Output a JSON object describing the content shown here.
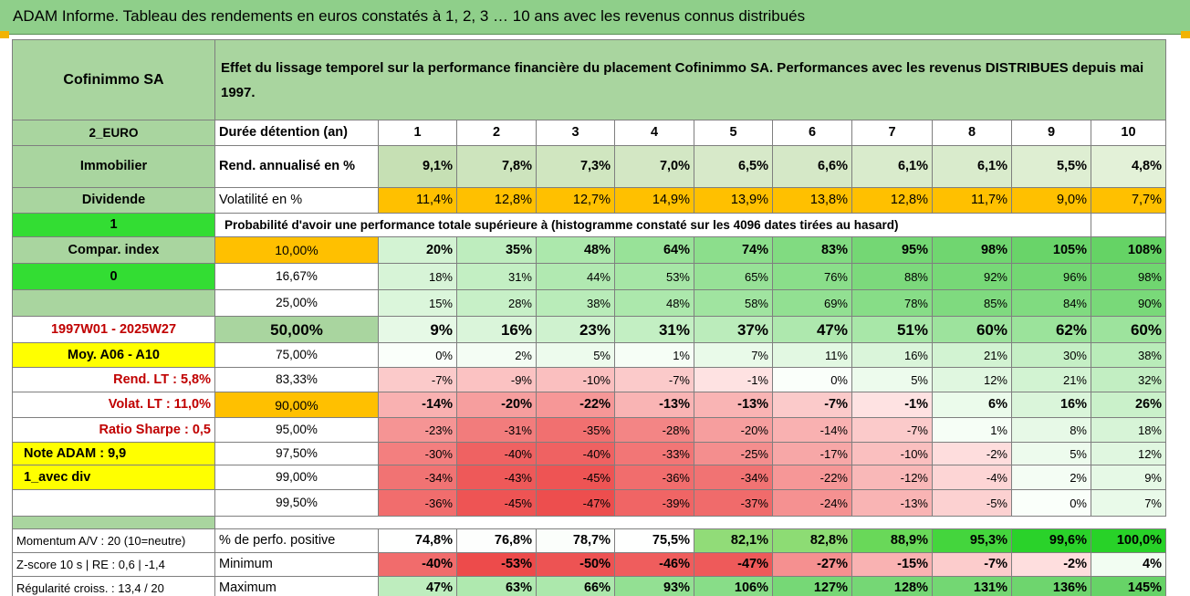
{
  "title": "ADAM Informe. Tableau des rendements en euros constatés à 1, 2, 3 … 10 ans avec les revenus connus distribués",
  "header": {
    "company": "Cofinimmo SA",
    "description": "Effet du lissage temporel sur la performance financière du placement Cofinimmo SA. Performances avec les revenus DISTRIBUES depuis mai 1997."
  },
  "years": [
    "1",
    "2",
    "3",
    "4",
    "5",
    "6",
    "7",
    "8",
    "9",
    "10"
  ],
  "top_rows": {
    "duration_label": "Durée détention (an)",
    "return_label": "Rend. annualisé en %",
    "returns": [
      "9,1%",
      "7,8%",
      "7,3%",
      "7,0%",
      "6,5%",
      "6,6%",
      "6,1%",
      "6,1%",
      "5,5%",
      "4,8%"
    ],
    "volatility_label": "Volatilité en %",
    "volatility": [
      "11,4%",
      "12,8%",
      "12,7%",
      "14,9%",
      "13,9%",
      "13,8%",
      "12,8%",
      "11,7%",
      "9,0%",
      "7,7%"
    ],
    "probability_label": "Probabilité d'avoir une performance totale supérieure à (histogramme constaté sur les 4096 dates tirées au hasard)"
  },
  "left_panel": [
    "2_EURO",
    "Immobilier",
    "Dividende",
    "1",
    "Compar. index",
    "0",
    "",
    "1997W01 - 2025W27",
    "Moy. A06 - A10",
    "Rend. LT :   5,8%",
    "Volat. LT :   11,0%",
    "Ratio Sharpe :   0,5",
    "Note ADAM : 9,9",
    "1_avec div",
    ""
  ],
  "histogram": [
    {
      "pct": "10,00%",
      "values": [
        "20%",
        "35%",
        "48%",
        "64%",
        "74%",
        "83%",
        "95%",
        "98%",
        "105%",
        "108%"
      ]
    },
    {
      "pct": "16,67%",
      "values": [
        "18%",
        "31%",
        "44%",
        "53%",
        "65%",
        "76%",
        "88%",
        "92%",
        "96%",
        "98%"
      ]
    },
    {
      "pct": "25,00%",
      "values": [
        "15%",
        "28%",
        "38%",
        "48%",
        "58%",
        "69%",
        "78%",
        "85%",
        "84%",
        "90%"
      ]
    },
    {
      "pct": "50,00%",
      "values": [
        "9%",
        "16%",
        "23%",
        "31%",
        "37%",
        "47%",
        "51%",
        "60%",
        "62%",
        "60%"
      ]
    },
    {
      "pct": "75,00%",
      "values": [
        "0%",
        "2%",
        "5%",
        "1%",
        "7%",
        "11%",
        "16%",
        "21%",
        "30%",
        "38%"
      ]
    },
    {
      "pct": "83,33%",
      "values": [
        "-7%",
        "-9%",
        "-10%",
        "-7%",
        "-1%",
        "0%",
        "5%",
        "12%",
        "21%",
        "32%"
      ]
    },
    {
      "pct": "90,00%",
      "values": [
        "-14%",
        "-20%",
        "-22%",
        "-13%",
        "-13%",
        "-7%",
        "-1%",
        "6%",
        "16%",
        "26%"
      ]
    },
    {
      "pct": "95,00%",
      "values": [
        "-23%",
        "-31%",
        "-35%",
        "-28%",
        "-20%",
        "-14%",
        "-7%",
        "1%",
        "8%",
        "18%"
      ]
    },
    {
      "pct": "97,50%",
      "values": [
        "-30%",
        "-40%",
        "-40%",
        "-33%",
        "-25%",
        "-17%",
        "-10%",
        "-2%",
        "5%",
        "12%"
      ]
    },
    {
      "pct": "99,00%",
      "values": [
        "-34%",
        "-43%",
        "-45%",
        "-36%",
        "-34%",
        "-22%",
        "-12%",
        "-4%",
        "2%",
        "9%"
      ]
    },
    {
      "pct": "99,50%",
      "values": [
        "-36%",
        "-45%",
        "-47%",
        "-39%",
        "-37%",
        "-24%",
        "-13%",
        "-5%",
        "0%",
        "7%"
      ]
    }
  ],
  "bottom": [
    {
      "left": "Momentum A/V : 20 (10=neutre)",
      "label": "% de perfo. positive",
      "values": [
        "74,8%",
        "76,8%",
        "78,7%",
        "75,5%",
        "82,1%",
        "82,8%",
        "88,9%",
        "95,3%",
        "99,6%",
        "100,0%"
      ]
    },
    {
      "left": "Z-score 10 s | RE : 0,6 | -1,4",
      "label": "Minimum",
      "values": [
        "-40%",
        "-53%",
        "-50%",
        "-46%",
        "-47%",
        "-27%",
        "-15%",
        "-7%",
        "-2%",
        "4%"
      ]
    },
    {
      "left": "Régularité croiss. : 13,4 / 20",
      "label": "Maximum",
      "values": [
        "47%",
        "63%",
        "66%",
        "93%",
        "106%",
        "127%",
        "128%",
        "131%",
        "136%",
        "145%"
      ]
    }
  ]
}
